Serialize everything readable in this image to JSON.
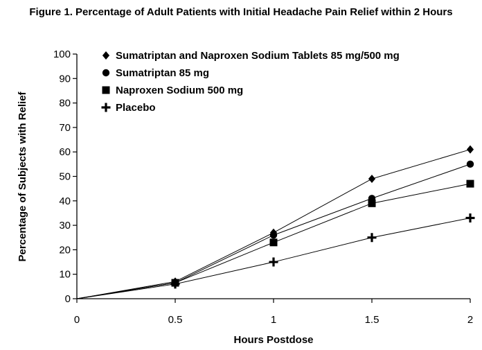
{
  "chart_data": {
    "type": "line",
    "title": "Figure 1. Percentage of Adult Patients with Initial Headache Pain Relief within 2 Hours",
    "xlabel": "Hours Postdose",
    "ylabel": "Percentage of Subjects with Relief",
    "xlim": [
      0,
      2
    ],
    "ylim": [
      0,
      100
    ],
    "x_ticks": [
      "0",
      "0.5",
      "1",
      "1.5",
      "2"
    ],
    "y_ticks": [
      "0",
      "10",
      "20",
      "30",
      "40",
      "50",
      "60",
      "70",
      "80",
      "90",
      "100"
    ],
    "x": [
      0,
      0.5,
      1,
      1.5,
      2
    ],
    "grid": false,
    "legend_position": "top-left",
    "series": [
      {
        "name": "Sumatriptan and Naproxen Sodium Tablets 85 mg/500 mg",
        "marker": "diamond",
        "values": [
          0,
          7,
          27,
          49,
          61
        ]
      },
      {
        "name": "Sumatriptan 85 mg",
        "marker": "circle",
        "values": [
          0,
          6.5,
          26,
          41,
          55
        ]
      },
      {
        "name": "Naproxen Sodium 500 mg",
        "marker": "square",
        "values": [
          0,
          6.5,
          23,
          39,
          47
        ]
      },
      {
        "name": "Placebo",
        "marker": "plus",
        "values": [
          0,
          6,
          15,
          25,
          33
        ]
      }
    ]
  }
}
